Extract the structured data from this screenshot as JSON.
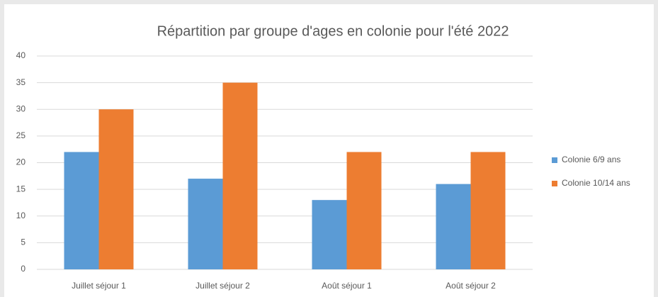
{
  "chart_data": {
    "type": "bar",
    "title": "Répartition par groupe d'ages en colonie pour l'été 2022",
    "categories": [
      "Juillet séjour 1",
      "Juillet séjour 2",
      "Août séjour 1",
      "Août séjour 2"
    ],
    "series": [
      {
        "name": "Colonie 6/9 ans",
        "color": "#5b9bd5",
        "values": [
          22,
          17,
          13,
          16
        ]
      },
      {
        "name": "Colonie 10/14 ans",
        "color": "#ed7d31",
        "values": [
          30,
          35,
          22,
          22
        ]
      }
    ],
    "ylim": [
      0,
      40
    ],
    "yticks": [
      0,
      5,
      10,
      15,
      20,
      25,
      30,
      35,
      40
    ],
    "grid": true,
    "legend": "right"
  }
}
